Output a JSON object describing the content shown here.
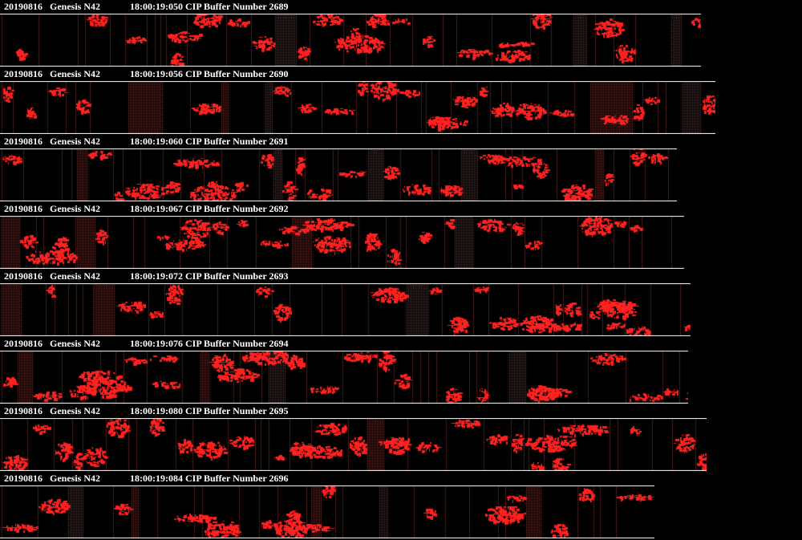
{
  "viewer": {
    "background": "#000000",
    "particle_color": "#ff2020",
    "slice_line_color": "#c81818",
    "border_color": "#ffffff"
  },
  "buffers": [
    {
      "date": "20190816",
      "probe": "Genesis N42",
      "time": "18:00:19:050",
      "label": "CIP Buffer Number",
      "number": "2689"
    },
    {
      "date": "20190816",
      "probe": "Genesis N42",
      "time": "18:00:19:056",
      "label": "CIP Buffer Number",
      "number": "2690"
    },
    {
      "date": "20190816",
      "probe": "Genesis N42",
      "time": "18:00:19:060",
      "label": "CIP Buffer Number",
      "number": "2691"
    },
    {
      "date": "20190816",
      "probe": "Genesis N42",
      "time": "18:00:19:067",
      "label": "CIP Buffer Number",
      "number": "2692"
    },
    {
      "date": "20190816",
      "probe": "Genesis N42",
      "time": "18:00:19:072",
      "label": "CIP Buffer Number",
      "number": "2693"
    },
    {
      "date": "20190816",
      "probe": "Genesis N42",
      "time": "18:00:19:076",
      "label": "CIP Buffer Number",
      "number": "2694"
    },
    {
      "date": "20190816",
      "probe": "Genesis N42",
      "time": "18:00:19:080",
      "label": "CIP Buffer Number",
      "number": "2695"
    },
    {
      "date": "20190816",
      "probe": "Genesis N42",
      "time": "18:00:19:084",
      "label": "CIP Buffer Number",
      "number": "2696"
    }
  ]
}
